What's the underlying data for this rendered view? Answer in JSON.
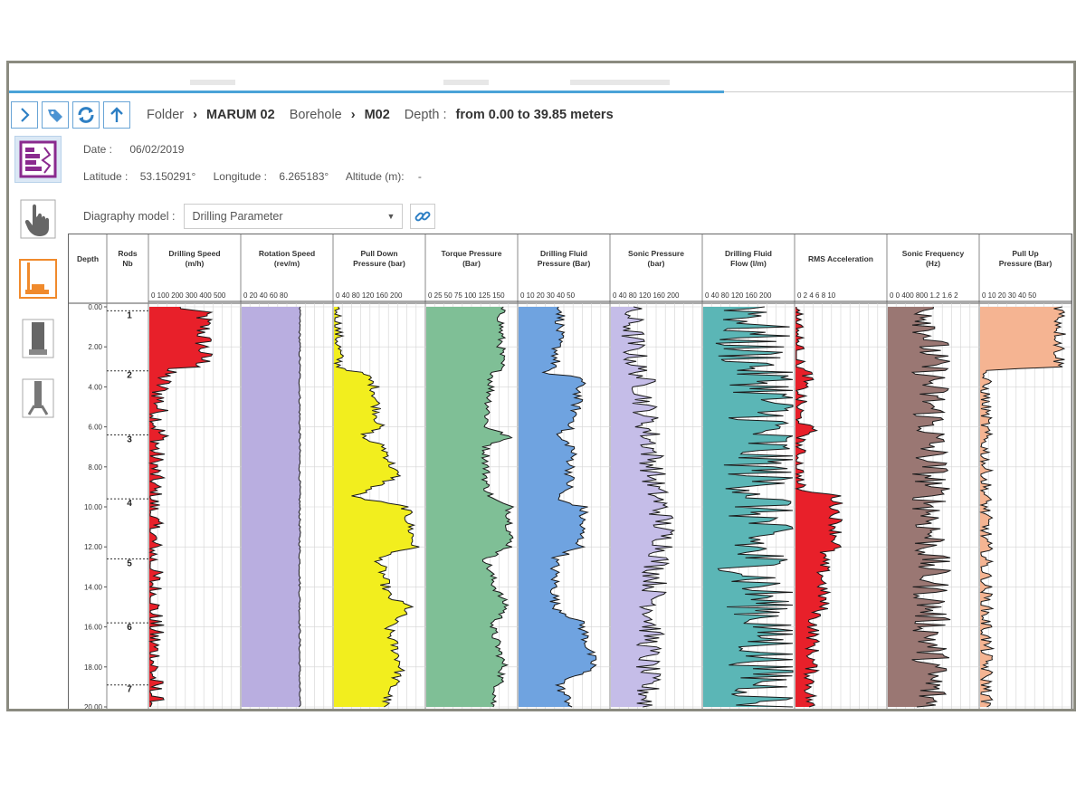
{
  "breadcrumb": {
    "folder_label": "Folder",
    "folder_value": "MARUM 02",
    "borehole_label": "Borehole",
    "borehole_value": "M02",
    "depth_label": "Depth :",
    "depth_value": "from 0.00 to 39.85 meters"
  },
  "meta": {
    "date_label": "Date :",
    "date_value": "06/02/2019",
    "latitude_label": "Latitude :",
    "latitude_value": "53.150291°",
    "longitude_label": "Longitude :",
    "longitude_value": "6.265183°",
    "altitude_label": "Altitude (m):",
    "altitude_value": "-"
  },
  "diagraphy": {
    "label": "Diagraphy model :",
    "selected": "Drilling Parameter"
  },
  "icons": {
    "toolbar": [
      "expand-arrow-icon",
      "tag-icon",
      "refresh-icon",
      "upload-arrow-icon"
    ],
    "sidebar": [
      "diagraphy-view-icon",
      "hand-pointer-icon",
      "drilling-rig-icon",
      "core-tube-icon",
      "borehole-tool-icon"
    ]
  },
  "chart_data": {
    "type": "well-log",
    "depth_header": "Depth",
    "rods_header": "Rods Nb",
    "depth_ticks": [
      "0.00",
      "2.00",
      "4.00",
      "6.00",
      "8.00",
      "10.00",
      "12.00",
      "14.00",
      "16.00",
      "18.00",
      "20.00"
    ],
    "depth_range": [
      0,
      20
    ],
    "rods": [
      {
        "label": "1",
        "depth": 0.2
      },
      {
        "label": "2",
        "depth": 3.2
      },
      {
        "label": "3",
        "depth": 6.4
      },
      {
        "label": "4",
        "depth": 9.6
      },
      {
        "label": "5",
        "depth": 12.6
      },
      {
        "label": "6",
        "depth": 15.8
      },
      {
        "label": "7",
        "depth": 18.9
      }
    ],
    "tracks": [
      {
        "name": "Drilling Speed (m/h)",
        "ticks": "0 100 200 300 400 500",
        "color": "#e8202a",
        "xmax": 500,
        "profile": [
          [
            0,
            150
          ],
          [
            0.3,
            300
          ],
          [
            1.3,
            300
          ],
          [
            3.0,
            300
          ],
          [
            3.1,
            100
          ],
          [
            4,
            60
          ],
          [
            6,
            40
          ],
          [
            6.5,
            60
          ],
          [
            7,
            30
          ],
          [
            10,
            10
          ],
          [
            12,
            15
          ],
          [
            16,
            20
          ],
          [
            20,
            20
          ]
        ],
        "noise": 0.12
      },
      {
        "name": "Rotation Speed (rev/m)",
        "ticks": "0 20 40 60 80",
        "color": "#b9aee0",
        "xmax": 90,
        "profile": [
          [
            0,
            58
          ],
          [
            20,
            58
          ]
        ],
        "noise": 0.01
      },
      {
        "name": "Pull Down Pressure (bar)",
        "ticks": "0 40 80 120 160 200",
        "color": "#f2ee1e",
        "xmax": 200,
        "profile": [
          [
            0,
            5
          ],
          [
            3,
            10
          ],
          [
            3.4,
            70
          ],
          [
            4,
            90
          ],
          [
            6,
            100
          ],
          [
            6.5,
            60
          ],
          [
            7,
            110
          ],
          [
            8.5,
            140
          ],
          [
            9.5,
            40
          ],
          [
            10,
            160
          ],
          [
            12,
            180
          ],
          [
            12.5,
            100
          ],
          [
            14.5,
            120
          ],
          [
            15,
            170
          ],
          [
            16,
            120
          ],
          [
            18,
            150
          ],
          [
            20,
            110
          ]
        ],
        "noise": 0.06
      },
      {
        "name": "Torque Pressure (Bar)",
        "ticks": "0 25 50 75 100 125 150",
        "color": "#7fbf96",
        "xmax": 150,
        "profile": [
          [
            0,
            125
          ],
          [
            3,
            125
          ],
          [
            3.5,
            110
          ],
          [
            6,
            100
          ],
          [
            6.5,
            140
          ],
          [
            7,
            100
          ],
          [
            9,
            100
          ],
          [
            9.6,
            110
          ],
          [
            10,
            140
          ],
          [
            12,
            140
          ],
          [
            12.6,
            100
          ],
          [
            14,
            115
          ],
          [
            15,
            135
          ],
          [
            16,
            110
          ],
          [
            18,
            130
          ],
          [
            20,
            110
          ]
        ],
        "noise": 0.05
      },
      {
        "name": "Drilling Fluid Pressure (Bar)",
        "ticks": "0 10 20 30 40 50",
        "color": "#6fa3e0",
        "xmax": 50,
        "profile": [
          [
            0,
            24
          ],
          [
            3,
            20
          ],
          [
            3.3,
            10
          ],
          [
            3.5,
            35
          ],
          [
            6,
            30
          ],
          [
            6.4,
            20
          ],
          [
            7,
            30
          ],
          [
            9,
            28
          ],
          [
            9.6,
            20
          ],
          [
            10,
            36
          ],
          [
            12,
            34
          ],
          [
            12.6,
            20
          ],
          [
            15,
            20
          ],
          [
            15.8,
            35
          ],
          [
            18,
            42
          ],
          [
            18.9,
            22
          ],
          [
            20,
            30
          ]
        ],
        "noise": 0.06
      },
      {
        "name": "Sonic Pressure (bar)",
        "ticks": "0 40 80 120 160 200",
        "color": "#c5bde8",
        "xmax": 200,
        "profile": [
          [
            0,
            40
          ],
          [
            3,
            55
          ],
          [
            3.5,
            70
          ],
          [
            6,
            80
          ],
          [
            7,
            90
          ],
          [
            9,
            95
          ],
          [
            10,
            110
          ],
          [
            12,
            120
          ],
          [
            13,
            100
          ],
          [
            16,
            90
          ],
          [
            18,
            80
          ],
          [
            20,
            80
          ]
        ],
        "noise": 0.15
      },
      {
        "name": "Drilling Fluid Flow (l/m)",
        "ticks": "0 40 80 120 160 200",
        "color": "#5bb6b6",
        "xmax": 200,
        "profile": [
          [
            0,
            120
          ],
          [
            2,
            100
          ],
          [
            4,
            150
          ],
          [
            8,
            130
          ],
          [
            10,
            140
          ],
          [
            12,
            110
          ],
          [
            16,
            150
          ],
          [
            20,
            140
          ]
        ],
        "noise": 0.45
      },
      {
        "name": "RMS Acceleration",
        "ticks": "0 2 4 6 8 10",
        "color": "#e8202a",
        "xmax": 10,
        "profile": [
          [
            0,
            0.1
          ],
          [
            3,
            0.2
          ],
          [
            3.4,
            1.5
          ],
          [
            4,
            0.6
          ],
          [
            5.5,
            0.2
          ],
          [
            6.3,
            1.8
          ],
          [
            6.6,
            0.3
          ],
          [
            9.2,
            0.3
          ],
          [
            9.4,
            4.5
          ],
          [
            12,
            4.5
          ],
          [
            12.3,
            3
          ],
          [
            15,
            3
          ],
          [
            15.6,
            2
          ],
          [
            20,
            1.5
          ]
        ],
        "noise": 0.08
      },
      {
        "name": "Sonic Frequency (Hz)",
        "ticks": "0 0 400 800 1.2 1.6 2",
        "color": "#9a7773",
        "xmax": 100,
        "profile": [
          [
            0,
            48
          ],
          [
            20,
            48
          ]
        ],
        "noise": 0.22
      },
      {
        "name": "Pull Up Pressure (Bar)",
        "ticks": "0 10 20 30 40 50",
        "color": "#f5b492",
        "xmax": 50,
        "profile": [
          [
            0,
            45
          ],
          [
            3,
            44
          ],
          [
            3.2,
            2
          ],
          [
            20,
            3
          ]
        ],
        "noise": 0.08
      }
    ]
  }
}
